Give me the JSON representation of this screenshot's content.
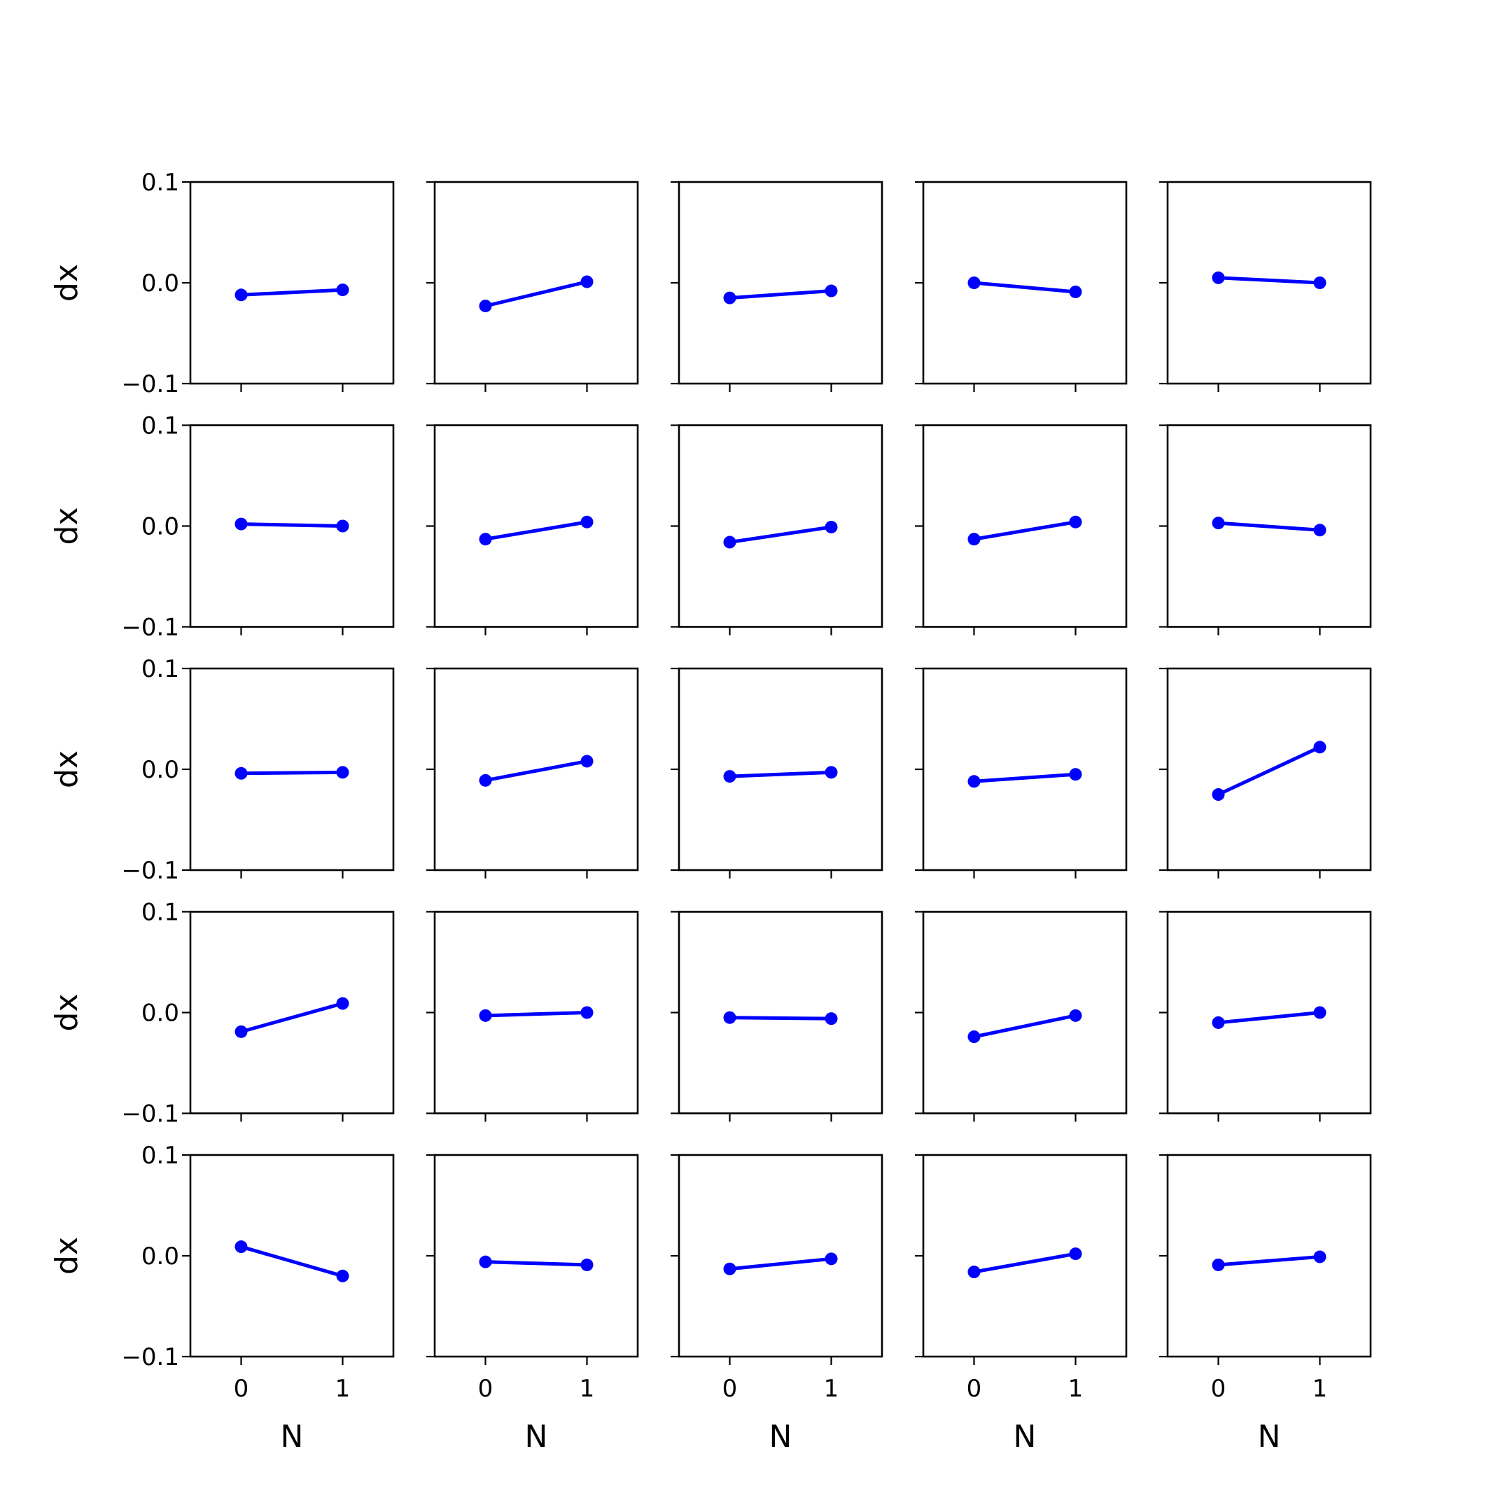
{
  "chart_data": {
    "type": "line",
    "layout": {
      "rows": 5,
      "cols": 5,
      "sharex": true,
      "sharey": true
    },
    "line_color": "#0000ff",
    "marker": "circle",
    "xlabel": "N",
    "ylabel": "dx",
    "xticks": [
      0,
      1
    ],
    "xtick_labels": [
      "0",
      "1"
    ],
    "xlim": [
      -0.5,
      1.5
    ],
    "yticks": [
      0.1,
      0.0,
      -0.1
    ],
    "ytick_labels": [
      "0.1",
      "0.0",
      "−0.1"
    ],
    "ylim": [
      -0.1,
      0.1
    ],
    "panels": [
      {
        "x": [
          0,
          1
        ],
        "y": [
          -0.012,
          -0.007
        ]
      },
      {
        "x": [
          0,
          1
        ],
        "y": [
          -0.023,
          0.001
        ]
      },
      {
        "x": [
          0,
          1
        ],
        "y": [
          -0.015,
          -0.008
        ]
      },
      {
        "x": [
          0,
          1
        ],
        "y": [
          0.0,
          -0.009
        ]
      },
      {
        "x": [
          0,
          1
        ],
        "y": [
          0.005,
          0.0
        ]
      },
      {
        "x": [
          0,
          1
        ],
        "y": [
          0.002,
          0.0
        ]
      },
      {
        "x": [
          0,
          1
        ],
        "y": [
          -0.013,
          0.004
        ]
      },
      {
        "x": [
          0,
          1
        ],
        "y": [
          -0.016,
          -0.001
        ]
      },
      {
        "x": [
          0,
          1
        ],
        "y": [
          -0.013,
          0.004
        ]
      },
      {
        "x": [
          0,
          1
        ],
        "y": [
          0.003,
          -0.004
        ]
      },
      {
        "x": [
          0,
          1
        ],
        "y": [
          -0.004,
          -0.003
        ]
      },
      {
        "x": [
          0,
          1
        ],
        "y": [
          -0.011,
          0.008
        ]
      },
      {
        "x": [
          0,
          1
        ],
        "y": [
          -0.007,
          -0.003
        ]
      },
      {
        "x": [
          0,
          1
        ],
        "y": [
          -0.012,
          -0.005
        ]
      },
      {
        "x": [
          0,
          1
        ],
        "y": [
          -0.025,
          0.022
        ]
      },
      {
        "x": [
          0,
          1
        ],
        "y": [
          -0.019,
          0.009
        ]
      },
      {
        "x": [
          0,
          1
        ],
        "y": [
          -0.003,
          0.0
        ]
      },
      {
        "x": [
          0,
          1
        ],
        "y": [
          -0.005,
          -0.006
        ]
      },
      {
        "x": [
          0,
          1
        ],
        "y": [
          -0.024,
          -0.003
        ]
      },
      {
        "x": [
          0,
          1
        ],
        "y": [
          -0.01,
          0.0
        ]
      },
      {
        "x": [
          0,
          1
        ],
        "y": [
          0.009,
          -0.02
        ]
      },
      {
        "x": [
          0,
          1
        ],
        "y": [
          -0.006,
          -0.009
        ]
      },
      {
        "x": [
          0,
          1
        ],
        "y": [
          -0.013,
          -0.003
        ]
      },
      {
        "x": [
          0,
          1
        ],
        "y": [
          -0.016,
          0.002
        ]
      },
      {
        "x": [
          0,
          1
        ],
        "y": [
          -0.009,
          -0.001
        ]
      }
    ]
  }
}
